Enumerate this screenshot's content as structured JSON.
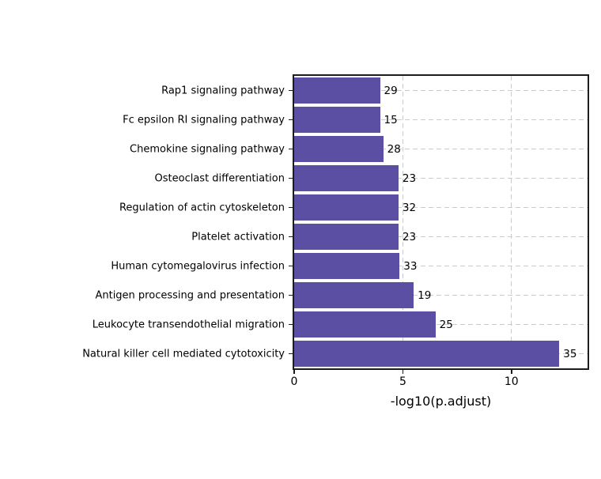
{
  "chart_data": {
    "type": "bar",
    "orientation": "horizontal",
    "title": "",
    "xlabel": "-log10(p.adjust)",
    "ylabel": "",
    "xlim": [
      0,
      13.5
    ],
    "xticks": [
      0,
      5,
      10
    ],
    "grid": true,
    "legend": false,
    "bar_color": "#5a4fa2",
    "grid_color": "#cbcbcb",
    "spine_color": "#1c1c1c",
    "text_color": "#000000",
    "categories": [
      "Rap1 signaling pathway",
      "Fc epsilon RI signaling pathway",
      "Chemokine signaling pathway",
      "Osteoclast differentiation",
      "Regulation of actin cytoskeleton",
      "Platelet activation",
      "Human cytomegalovirus infection",
      "Antigen processing and presentation",
      "Leukocyte transendothelial migration",
      "Natural killer cell mediated cytotoxicity"
    ],
    "series": [
      {
        "name": "-log10(p.adjust)",
        "values": [
          3.95,
          3.95,
          4.1,
          4.8,
          4.8,
          4.8,
          4.85,
          5.5,
          6.5,
          12.2
        ]
      }
    ],
    "count_labels": [
      29,
      15,
      28,
      23,
      32,
      23,
      33,
      19,
      25,
      35
    ]
  }
}
